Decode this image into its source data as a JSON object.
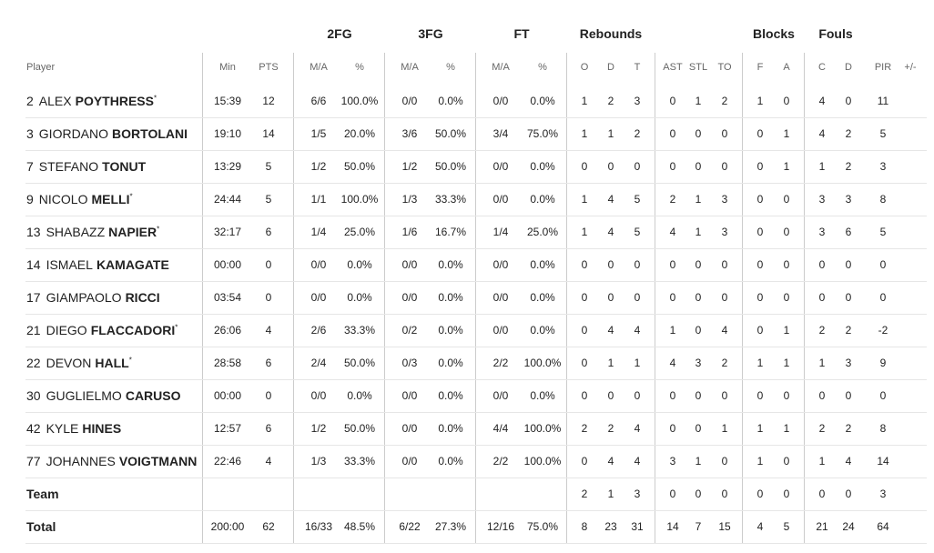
{
  "table": {
    "groups": [
      "2FG",
      "3FG",
      "FT",
      "Rebounds",
      "Blocks",
      "Fouls"
    ],
    "columns": [
      "Player",
      "Min",
      "PTS",
      "M/A",
      "%",
      "M/A",
      "%",
      "M/A",
      "%",
      "O",
      "D",
      "T",
      "AST",
      "STL",
      "TO",
      "F",
      "A",
      "C",
      "D",
      "PIR",
      "+/-"
    ],
    "players": [
      {
        "number": 2,
        "first": "ALEX",
        "last": "POYTHRESS",
        "mark": "*",
        "stats": [
          "15:39",
          12,
          "6/6",
          "100.0%",
          "0/0",
          "0.0%",
          "0/0",
          "0.0%",
          1,
          2,
          3,
          0,
          1,
          2,
          1,
          0,
          4,
          0,
          11,
          null
        ]
      },
      {
        "number": 3,
        "first": "GIORDANO",
        "last": "BORTOLANI",
        "stats": [
          "19:10",
          14,
          "1/5",
          "20.0%",
          "3/6",
          "50.0%",
          "3/4",
          "75.0%",
          1,
          1,
          2,
          0,
          0,
          0,
          0,
          1,
          4,
          2,
          5,
          null
        ]
      },
      {
        "number": 7,
        "first": "STEFANO",
        "last": "TONUT",
        "stats": [
          "13:29",
          5,
          "1/2",
          "50.0%",
          "1/2",
          "50.0%",
          "0/0",
          "0.0%",
          0,
          0,
          0,
          0,
          0,
          0,
          0,
          1,
          1,
          2,
          3,
          null
        ]
      },
      {
        "number": 9,
        "first": "NICOLO",
        "last": "MELLI",
        "mark": "*",
        "stats": [
          "24:44",
          5,
          "1/1",
          "100.0%",
          "1/3",
          "33.3%",
          "0/0",
          "0.0%",
          1,
          4,
          5,
          2,
          1,
          3,
          0,
          0,
          3,
          3,
          8,
          null
        ]
      },
      {
        "number": 13,
        "first": "SHABAZZ",
        "last": "NAPIER",
        "mark": "*",
        "stats": [
          "32:17",
          6,
          "1/4",
          "25.0%",
          "1/6",
          "16.7%",
          "1/4",
          "25.0%",
          1,
          4,
          5,
          4,
          1,
          3,
          0,
          0,
          3,
          6,
          5,
          null
        ]
      },
      {
        "number": 14,
        "first": "ISMAEL",
        "last": "KAMAGATE",
        "stats": [
          "00:00",
          0,
          "0/0",
          "0.0%",
          "0/0",
          "0.0%",
          "0/0",
          "0.0%",
          0,
          0,
          0,
          0,
          0,
          0,
          0,
          0,
          0,
          0,
          0,
          null
        ]
      },
      {
        "number": 17,
        "first": "GIAMPAOLO",
        "last": "RICCI",
        "stats": [
          "03:54",
          0,
          "0/0",
          "0.0%",
          "0/0",
          "0.0%",
          "0/0",
          "0.0%",
          0,
          0,
          0,
          0,
          0,
          0,
          0,
          0,
          0,
          0,
          0,
          null
        ]
      },
      {
        "number": 21,
        "first": "DIEGO",
        "last": "FLACCADORI",
        "mark": "*",
        "stats": [
          "26:06",
          4,
          "2/6",
          "33.3%",
          "0/2",
          "0.0%",
          "0/0",
          "0.0%",
          0,
          4,
          4,
          1,
          0,
          4,
          0,
          1,
          2,
          2,
          -2,
          null
        ]
      },
      {
        "number": 22,
        "first": "DEVON",
        "last": "HALL",
        "mark": "*",
        "stats": [
          "28:58",
          6,
          "2/4",
          "50.0%",
          "0/3",
          "0.0%",
          "2/2",
          "100.0%",
          0,
          1,
          1,
          4,
          3,
          2,
          1,
          1,
          1,
          3,
          9,
          null
        ]
      },
      {
        "number": 30,
        "first": "GUGLIELMO",
        "last": "CARUSO",
        "stats": [
          "00:00",
          0,
          "0/0",
          "0.0%",
          "0/0",
          "0.0%",
          "0/0",
          "0.0%",
          0,
          0,
          0,
          0,
          0,
          0,
          0,
          0,
          0,
          0,
          0,
          null
        ]
      },
      {
        "number": 42,
        "first": "KYLE",
        "last": "HINES",
        "stats": [
          "12:57",
          6,
          "1/2",
          "50.0%",
          "0/0",
          "0.0%",
          "4/4",
          "100.0%",
          2,
          2,
          4,
          0,
          0,
          1,
          1,
          1,
          2,
          2,
          8,
          null
        ]
      },
      {
        "number": 77,
        "first": "JOHANNES",
        "last": "VOIGTMANN",
        "stats": [
          "22:46",
          4,
          "1/3",
          "33.3%",
          "0/0",
          "0.0%",
          "2/2",
          "100.0%",
          0,
          4,
          4,
          3,
          1,
          0,
          1,
          0,
          1,
          4,
          14,
          null
        ]
      }
    ],
    "team": {
      "label": "Team",
      "stats": [
        null,
        null,
        null,
        null,
        null,
        null,
        null,
        null,
        2,
        1,
        3,
        0,
        0,
        0,
        0,
        0,
        0,
        0,
        3,
        null
      ]
    },
    "total": {
      "label": "Total",
      "stats": [
        "200:00",
        62,
        "16/33",
        "48.5%",
        "6/22",
        "27.3%",
        "12/16",
        "75.0%",
        8,
        23,
        31,
        14,
        7,
        15,
        4,
        5,
        21,
        24,
        64,
        null
      ]
    }
  }
}
